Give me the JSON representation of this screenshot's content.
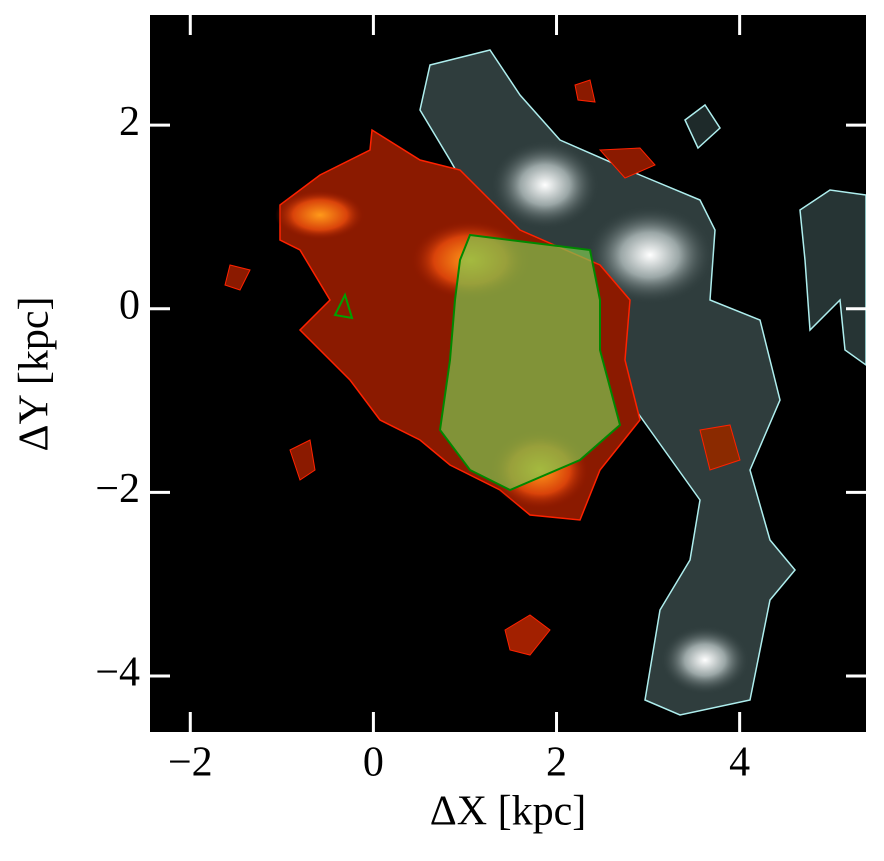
{
  "chart_data": {
    "type": "image",
    "xlabel": "ΔX [kpc]",
    "ylabel": "ΔY [kpc]",
    "xlim": [
      -2.44,
      5.38
    ],
    "ylim": [
      -4.61,
      3.2
    ],
    "xticks": [
      {
        "value": -2,
        "label": "−2"
      },
      0,
      2,
      4
    ],
    "yticks": [
      {
        "value": -4,
        "label": "−4"
      },
      {
        "value": -2,
        "label": "−2"
      },
      0,
      2
    ]
  }
}
